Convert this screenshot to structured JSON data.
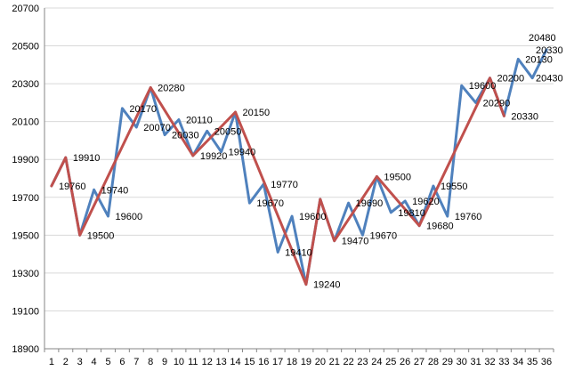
{
  "chart_data": {
    "type": "line",
    "title": "",
    "xlabel": "",
    "ylabel": "",
    "ylim": [
      18900,
      20700
    ],
    "yticks": [
      18900,
      19100,
      19300,
      19500,
      19700,
      19900,
      20100,
      20300,
      20500,
      20700
    ],
    "grid": "horizontal",
    "legend": "none",
    "categories": [
      "1",
      "2",
      "3",
      "4",
      "5",
      "6",
      "7",
      "8",
      "9",
      "10",
      "11",
      "12",
      "13",
      "14",
      "15",
      "16",
      "17",
      "18",
      "19",
      "20",
      "21",
      "22",
      "23",
      "24",
      "25",
      "26",
      "27",
      "28",
      "29",
      "30",
      "31",
      "32",
      "33",
      "34",
      "35",
      "36"
    ],
    "series": [
      {
        "color": "#4f81bd",
        "values": [
          19760,
          19910,
          19500,
          19740,
          19600,
          20170,
          20070,
          20280,
          20030,
          20110,
          19920,
          20050,
          19940,
          20150,
          19670,
          19770,
          19410,
          19600,
          19240,
          19690,
          19470,
          19670,
          19500,
          19810,
          19620,
          19680,
          19550,
          19760,
          19600,
          20290,
          20200,
          20330,
          20130,
          20430,
          20330,
          20480
        ]
      },
      {
        "color": "#c0504d",
        "values": [
          19760,
          19910,
          19500,
          null,
          null,
          null,
          null,
          20280,
          null,
          null,
          19920,
          null,
          null,
          20150,
          null,
          null,
          null,
          null,
          19240,
          19690,
          19470,
          null,
          null,
          19810,
          null,
          null,
          19550,
          null,
          null,
          null,
          null,
          20330,
          20130,
          null,
          null,
          null
        ]
      }
    ],
    "data_labels": [
      {
        "index": 1,
        "text": "19760"
      },
      {
        "index": 2,
        "text": "19910"
      },
      {
        "index": 3,
        "text": "19500"
      },
      {
        "index": 4,
        "text": "19740"
      },
      {
        "index": 5,
        "text": "19600"
      },
      {
        "index": 6,
        "text": "20170"
      },
      {
        "index": 7,
        "text": "20070"
      },
      {
        "index": 8,
        "text": "20280"
      },
      {
        "index": 9,
        "text": "20030"
      },
      {
        "index": 10,
        "text": "20110"
      },
      {
        "index": 11,
        "text": "19920"
      },
      {
        "index": 12,
        "text": "20050"
      },
      {
        "index": 13,
        "text": "19940"
      },
      {
        "index": 14,
        "text": "20150"
      },
      {
        "index": 15,
        "text": "19670"
      },
      {
        "index": 16,
        "text": "19770"
      },
      {
        "index": 17,
        "text": "19410"
      },
      {
        "index": 18,
        "text": "19600"
      },
      {
        "index": 19,
        "text": "19240"
      },
      {
        "index": 21,
        "text": "19470"
      },
      {
        "index": 22,
        "text": "19690"
      },
      {
        "index": 23,
        "text": "19670"
      },
      {
        "index": 24,
        "text": "19500"
      },
      {
        "index": 25,
        "text": "19810"
      },
      {
        "index": 26,
        "text": "19620"
      },
      {
        "index": 27,
        "text": "19680"
      },
      {
        "index": 28,
        "text": "19550"
      },
      {
        "index": 29,
        "text": "19760"
      },
      {
        "index": 30,
        "text": "19600"
      },
      {
        "index": 31,
        "text": "20290"
      },
      {
        "index": 32,
        "text": "20200"
      },
      {
        "index": 33,
        "text": "20330"
      },
      {
        "index": 34,
        "text": "20130"
      },
      {
        "index": 35,
        "text": "20430"
      },
      {
        "index": 36,
        "text": "20330"
      },
      {
        "index": 37,
        "text": "20480"
      }
    ]
  }
}
